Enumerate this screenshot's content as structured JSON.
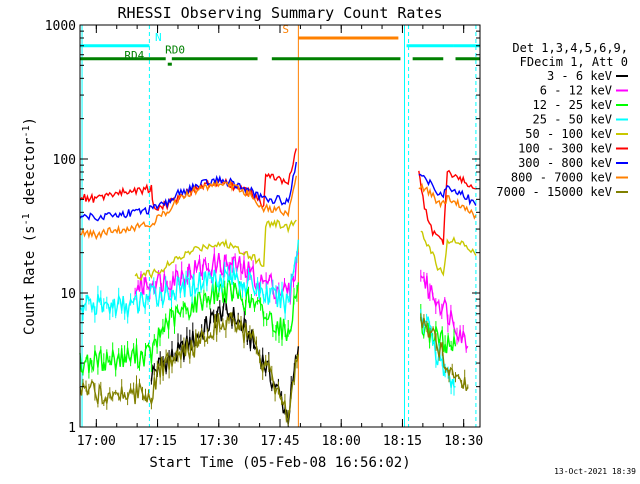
{
  "chart_data": {
    "type": "line",
    "title": "RHESSI Observing Summary Count Rates",
    "xlabel": "Start Time (05-Feb-08 16:56:02)",
    "ylabel_main": "Count Rate (s",
    "ylabel_sup1": "-1",
    "ylabel_mid": " detector",
    "ylabel_sup2": "-1",
    "ylabel_end": ")",
    "yscale": "log",
    "xlim_minutes": [
      0,
      98
    ],
    "ylim": [
      1,
      1000
    ],
    "x_ticks": [
      {
        "minutes": 4,
        "label": "17:00"
      },
      {
        "minutes": 19,
        "label": "17:15"
      },
      {
        "minutes": 34,
        "label": "17:30"
      },
      {
        "minutes": 49,
        "label": "17:45"
      },
      {
        "minutes": 64,
        "label": "18:00"
      },
      {
        "minutes": 79,
        "label": "18:15"
      },
      {
        "minutes": 94,
        "label": "18:30"
      }
    ],
    "y_ticks": [
      {
        "value": 1,
        "label": "1"
      },
      {
        "value": 10,
        "label": "10"
      },
      {
        "value": 100,
        "label": "100"
      },
      {
        "value": 1000,
        "label": "1000"
      }
    ],
    "legend_header": [
      "Det 1,3,4,5,6,9,",
      "FDecim 1, Att 0"
    ],
    "legend_placement": "right",
    "series": [
      {
        "name": "3 - 6 keV",
        "color": "#000000",
        "style": "hatched",
        "segments": [
          [
            [
              17.5,
              2.5
            ],
            [
              20,
              3
            ],
            [
              24,
              3.5
            ],
            [
              28,
              4.5
            ],
            [
              32,
              6
            ],
            [
              35,
              7.5
            ],
            [
              38,
              6.5
            ],
            [
              41,
              5
            ],
            [
              44,
              3.5
            ],
            [
              47,
              2.3
            ],
            [
              49,
              1.7
            ],
            [
              51,
              1.2
            ],
            [
              52.5,
              2.5
            ],
            [
              53.5,
              4
            ]
          ]
        ]
      },
      {
        "name": "6 - 12 keV",
        "color": "#ff00ff",
        "style": "hatched",
        "segments": [
          [
            [
              13.5,
              11
            ],
            [
              17.5,
              12
            ],
            [
              21,
              12.5
            ],
            [
              26,
              14
            ],
            [
              30,
              15.5
            ],
            [
              34,
              16.5
            ],
            [
              38,
              16
            ],
            [
              42,
              14
            ],
            [
              44,
              12
            ],
            [
              46,
              12
            ],
            [
              48,
              11
            ],
            [
              51.5,
              10
            ],
            [
              53.5,
              20
            ]
          ],
          [
            [
              83.5,
              15
            ],
            [
              85,
              11
            ],
            [
              89,
              8
            ],
            [
              92,
              6
            ],
            [
              95,
              4
            ]
          ]
        ]
      },
      {
        "name": "12 - 25 keV",
        "color": "#00ff00",
        "style": "hatched",
        "segments": [
          [
            [
              0,
              3
            ],
            [
              17.5,
              3.5
            ],
            [
              21,
              6
            ],
            [
              26,
              7.5
            ],
            [
              30,
              9
            ],
            [
              34,
              10.5
            ],
            [
              38,
              10
            ],
            [
              42,
              8.5
            ],
            [
              45,
              7
            ],
            [
              48,
              6
            ],
            [
              51,
              5
            ],
            [
              53.5,
              12
            ]
          ],
          [
            [
              83.5,
              6
            ],
            [
              86,
              5
            ],
            [
              88,
              4.5
            ],
            [
              92,
              4
            ]
          ]
        ]
      },
      {
        "name": "25 - 50 keV",
        "color": "#00ffff",
        "style": "hatched",
        "segments": [
          [
            [
              0,
              8
            ],
            [
              13.5,
              8
            ],
            [
              17,
              9.5
            ],
            [
              21,
              10
            ],
            [
              26,
              11
            ],
            [
              30,
              12.5
            ],
            [
              34,
              13.5
            ],
            [
              38,
              13
            ],
            [
              42,
              11.5
            ],
            [
              45,
              10
            ],
            [
              48,
              9
            ],
            [
              51,
              8.5
            ],
            [
              53.5,
              25
            ]
          ],
          [
            [
              83.5,
              7
            ],
            [
              86,
              5
            ],
            [
              88,
              3
            ],
            [
              92,
              2
            ]
          ]
        ]
      },
      {
        "name": "50 - 100 keV",
        "color": "#c8c800",
        "style": "line",
        "segments": [
          [
            [
              13.5,
              13
            ],
            [
              17.5,
              14
            ],
            [
              20,
              15
            ],
            [
              24,
              18
            ],
            [
              28,
              21
            ],
            [
              32,
              23
            ],
            [
              35,
              23.5
            ],
            [
              38,
              22
            ],
            [
              42,
              19
            ],
            [
              45,
              16
            ],
            [
              45.5,
              33
            ],
            [
              48,
              33
            ],
            [
              51,
              31
            ],
            [
              53,
              35
            ]
          ],
          [
            [
              83.5,
              28
            ],
            [
              85,
              24
            ],
            [
              86,
              20
            ],
            [
              88,
              15
            ],
            [
              89,
              14
            ],
            [
              90,
              25
            ],
            [
              92,
              24
            ],
            [
              95,
              22
            ],
            [
              97,
              19
            ]
          ]
        ]
      },
      {
        "name": "100 - 300 keV",
        "color": "#ff0000",
        "style": "line",
        "segments": [
          [
            [
              0,
              52
            ],
            [
              4,
              50
            ],
            [
              8,
              55
            ],
            [
              13,
              58
            ],
            [
              17.5,
              60
            ],
            [
              18,
              44
            ],
            [
              21,
              45
            ],
            [
              24,
              52
            ],
            [
              28,
              60
            ],
            [
              32,
              65
            ],
            [
              35,
              67
            ],
            [
              38,
              62
            ],
            [
              42,
              55
            ],
            [
              45,
              45
            ],
            [
              45.5,
              75
            ],
            [
              48,
              73
            ],
            [
              51,
              65
            ],
            [
              53,
              120
            ]
          ],
          [
            [
              83,
              86
            ],
            [
              84,
              50
            ],
            [
              86,
              30
            ],
            [
              88,
              25
            ],
            [
              89,
              24
            ],
            [
              90,
              80
            ],
            [
              92,
              75
            ],
            [
              95,
              65
            ],
            [
              97,
              60
            ]
          ]
        ]
      },
      {
        "name": "300 - 800 keV",
        "color": "#0000ff",
        "style": "line",
        "segments": [
          [
            [
              0,
              38
            ],
            [
              4,
              37
            ],
            [
              8,
              38
            ],
            [
              13,
              40
            ],
            [
              17.5,
              42
            ],
            [
              21,
              46
            ],
            [
              24,
              55
            ],
            [
              28,
              62
            ],
            [
              32,
              68
            ],
            [
              35,
              70
            ],
            [
              38,
              65
            ],
            [
              42,
              57
            ],
            [
              45,
              50
            ],
            [
              48,
              50
            ],
            [
              51,
              48
            ],
            [
              53,
              95
            ]
          ],
          [
            [
              83,
              80
            ],
            [
              85,
              70
            ],
            [
              88,
              56
            ],
            [
              89,
              55
            ],
            [
              90,
              60
            ],
            [
              94,
              55
            ],
            [
              97,
              45
            ]
          ]
        ]
      },
      {
        "name": "800 - 7000 keV",
        "color": "#ff8000",
        "style": "line",
        "segments": [
          [
            [
              0,
              28
            ],
            [
              4,
              27
            ],
            [
              8,
              29
            ],
            [
              13,
              31
            ],
            [
              17.5,
              33
            ],
            [
              21,
              40
            ],
            [
              24,
              50
            ],
            [
              28,
              58
            ],
            [
              32,
              64
            ],
            [
              35,
              66
            ],
            [
              38,
              62
            ],
            [
              42,
              53
            ],
            [
              45,
              43
            ],
            [
              48,
              42
            ],
            [
              51,
              40
            ],
            [
              53,
              75
            ]
          ],
          [
            [
              83,
              62
            ],
            [
              85,
              58
            ],
            [
              88,
              47
            ],
            [
              89,
              46
            ],
            [
              90,
              50
            ],
            [
              94,
              45
            ],
            [
              97,
              38
            ]
          ]
        ]
      },
      {
        "name": "7000 - 15000 keV",
        "color": "#808000",
        "style": "hatched",
        "segments": [
          [
            [
              0,
              1.8
            ],
            [
              17.5,
              1.8
            ],
            [
              20,
              2.8
            ],
            [
              24,
              3.3
            ],
            [
              28,
              4
            ],
            [
              32,
              5.5
            ],
            [
              35,
              6.5
            ],
            [
              38,
              6
            ],
            [
              42,
              4.5
            ],
            [
              44,
              3.3
            ],
            [
              47,
              2.2
            ],
            [
              49,
              1.5
            ],
            [
              51,
              1.2
            ],
            [
              52.5,
              2.5
            ],
            [
              53.5,
              3.5
            ]
          ],
          [
            [
              83.5,
              6
            ],
            [
              85,
              5
            ],
            [
              88,
              4
            ],
            [
              90,
              3
            ],
            [
              92,
              2.5
            ],
            [
              95,
              2
            ]
          ]
        ]
      }
    ],
    "attenuator_states": [
      {
        "label": "RD0",
        "color": "#008000",
        "y_value": 560,
        "label_minutes": 23.3,
        "segments": [
          [
            0,
            21
          ],
          [
            22.5,
            43.5
          ],
          [
            47,
            78.5
          ],
          [
            81.5,
            89
          ],
          [
            92,
            98
          ]
        ]
      },
      {
        "label": "RD4",
        "color": "#008000",
        "y_value": 510,
        "label_minutes": 13.3,
        "segments": [
          [
            21.5,
            22.5
          ]
        ]
      }
    ],
    "night_bands": [
      {
        "label": "N",
        "color": "#00ffff",
        "y_value": 700,
        "label_minutes": 19.2,
        "segments": [
          [
            0,
            17
          ],
          [
            80,
            91.5
          ],
          [
            91.5,
            98
          ]
        ]
      }
    ],
    "saa_bands": [
      {
        "label": "S",
        "color": "#ff8000",
        "y_value": 800,
        "label_minutes": 50.4,
        "segments": [
          [
            53.5,
            78
          ]
        ]
      }
    ],
    "vertical_markers": [
      {
        "minutes": 0.5,
        "color": "#00ffff",
        "style": "solid"
      },
      {
        "minutes": 17,
        "color": "#00ffff",
        "style": "dashed"
      },
      {
        "minutes": 53.5,
        "color": "#ff8000",
        "style": "solid"
      },
      {
        "minutes": 79.5,
        "color": "#00ffff",
        "style": "solid"
      },
      {
        "minutes": 80.5,
        "color": "#00ffff",
        "style": "dashed"
      },
      {
        "minutes": 97,
        "color": "#00ffff",
        "style": "dashed"
      }
    ],
    "footer_date": "13-Oct-2021 18:39"
  }
}
